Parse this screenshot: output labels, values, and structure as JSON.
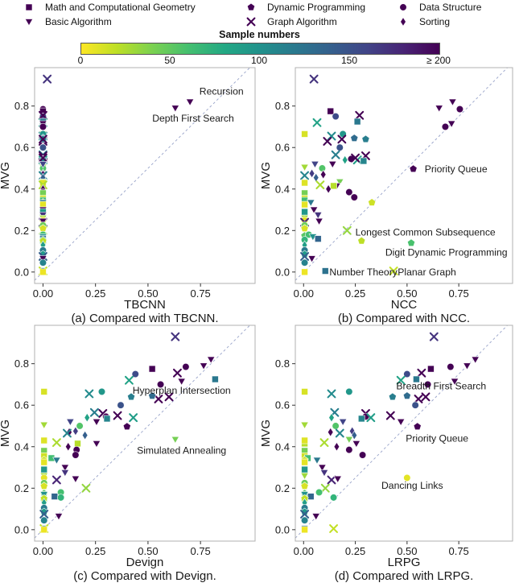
{
  "figure": {
    "legend": {
      "items": [
        {
          "label": "Math and Computational Geometry",
          "shape": "square"
        },
        {
          "label": "Basic Algorithm",
          "shape": "triangle-down"
        },
        {
          "label": "Dynamic Programming",
          "shape": "pentagon"
        },
        {
          "label": "Graph Algorithm",
          "shape": "x"
        },
        {
          "label": "Data Structure",
          "shape": "circle"
        },
        {
          "label": "Sorting",
          "shape": "diamond"
        }
      ],
      "marker_color": "#440154"
    },
    "colorbar": {
      "title": "Sample numbers",
      "tick_labels": [
        "0",
        "50",
        "100",
        "150",
        "≥ 200"
      ],
      "gradient": [
        "#fde725",
        "#bddf26",
        "#7ad151",
        "#44bf70",
        "#22a884",
        "#21918c",
        "#2a788e",
        "#355f8d",
        "#414487",
        "#482475",
        "#440154"
      ]
    }
  },
  "chart_data": {
    "type": "scatter",
    "ylabel": "MVG",
    "x_ticks": {
      "values": [
        0,
        0.25,
        0.5,
        0.75
      ],
      "labels": [
        "0.00",
        "0.25",
        "0.50",
        "0.75"
      ]
    },
    "y_ticks": {
      "values": [
        0,
        0.2,
        0.4,
        0.6,
        0.8
      ],
      "labels": [
        "0.0",
        "0.2",
        "0.4",
        "0.6",
        "0.8"
      ]
    },
    "xlim": [
      -0.04,
      1.01
    ],
    "ylim": [
      -0.055,
      0.985
    ],
    "identity_line": true,
    "grid": false,
    "color_encoding": {
      "label": "Sample numbers",
      "range": [
        0,
        200
      ],
      "colormap": "viridis reversed"
    },
    "shape_encoding": {
      "square": "Math and Computational Geometry",
      "triangle-down": "Basic Algorithm",
      "pentagon": "Dynamic Programming",
      "x": "Graph Algorithm",
      "circle": "Data Structure",
      "diamond": "Sorting"
    },
    "panels": [
      {
        "id": "tbcnn",
        "xlabel": "TBCNN",
        "caption": "(a) Compared with TBCNN.",
        "annotations": [
          {
            "text": "Recursion",
            "x": 0.85,
            "y": 0.872,
            "anchor": "middle"
          },
          {
            "text": "Depth First Search",
            "x": 0.715,
            "y": 0.742,
            "anchor": "middle"
          }
        ]
      },
      {
        "id": "ncc",
        "xlabel": "NCC",
        "caption": "(b) Compared with NCC.",
        "annotations": [
          {
            "text": "Priority Queue",
            "x": 0.585,
            "y": 0.497,
            "anchor": "start"
          },
          {
            "text": "Longest Common Subsequence",
            "x": 0.25,
            "y": 0.193,
            "anchor": "start"
          },
          {
            "text": "Digit Dynamic Programming",
            "x": 0.985,
            "y": 0.095,
            "anchor": "end"
          },
          {
            "text": "Number Theory",
            "x": 0.125,
            "y": 0.0,
            "anchor": "start"
          },
          {
            "text": "Planar Graph",
            "x": 0.455,
            "y": 0.0,
            "anchor": "start"
          }
        ]
      },
      {
        "id": "devign",
        "xlabel": "Devign",
        "caption": "(c) Compared with Devign.",
        "annotations": [
          {
            "text": "Hyperplan Intersection",
            "x": 0.66,
            "y": 0.672,
            "anchor": "middle"
          },
          {
            "text": "Simulated Annealing",
            "x": 0.66,
            "y": 0.383,
            "anchor": "middle"
          }
        ]
      },
      {
        "id": "lrpg",
        "xlabel": "LRPG",
        "caption": "(d) Compared with LRPG.",
        "annotations": [
          {
            "text": "Breadth First Search",
            "x": 0.665,
            "y": 0.692,
            "anchor": "middle"
          },
          {
            "text": "Priority Queue",
            "x": 0.645,
            "y": 0.44,
            "anchor": "middle"
          },
          {
            "text": "Dancing Links",
            "x": 0.525,
            "y": 0.213,
            "anchor": "middle"
          }
        ]
      }
    ],
    "points": [
      {
        "cat": "x",
        "n": 170,
        "mvg": 0.93,
        "x": [
          0.02,
          0.05,
          0.63,
          0.63
        ]
      },
      {
        "cat": "triangle-down",
        "n": 210,
        "mvg": 0.82,
        "x": [
          0.7,
          0.72,
          0.8,
          0.83
        ]
      },
      {
        "cat": "triangle-down",
        "n": 210,
        "mvg": 0.79,
        "x": [
          0.63,
          0.655,
          0.765,
          0.79
        ]
      },
      {
        "cat": "circle",
        "n": 210,
        "mvg": 0.785,
        "x": [
          0,
          0.755,
          0.68,
          0.71
        ]
      },
      {
        "cat": "square",
        "n": 210,
        "mvg": 0.775,
        "x": [
          0,
          0.13,
          0.52,
          0.615
        ]
      },
      {
        "cat": "circle",
        "n": 155,
        "mvg": 0.75,
        "x": [
          0,
          0.155,
          0.44,
          0.5
        ]
      },
      {
        "cat": "x",
        "n": 210,
        "mvg": 0.755,
        "x": [
          0,
          0.27,
          0.64,
          0.57
        ]
      },
      {
        "cat": "x",
        "n": 85,
        "mvg": 0.72,
        "x": [
          0,
          0.065,
          0.41,
          0.47
        ]
      },
      {
        "cat": "square",
        "n": 120,
        "mvg": 0.725,
        "x": [
          0,
          0.26,
          0.82,
          0.545
        ]
      },
      {
        "cat": "triangle-down",
        "n": 205,
        "mvg": 0.715,
        "x": [
          0,
          0.715,
          0.66,
          0.73
        ]
      },
      {
        "cat": "circle",
        "n": 210,
        "mvg": 0.7,
        "x": [
          0,
          0.685,
          0.56,
          0.6
        ]
      },
      {
        "cat": "square",
        "n": 12,
        "mvg": 0.665,
        "x": [
          0,
          0.005,
          0.005,
          0.005
        ]
      },
      {
        "cat": "x",
        "n": 105,
        "mvg": 0.655,
        "x": [
          0,
          0.135,
          0.22,
          0.135
        ]
      },
      {
        "cat": "x",
        "n": 205,
        "mvg": 0.63,
        "x": [
          0,
          0.115,
          0.55,
          0.555
        ]
      },
      {
        "cat": "circle",
        "n": 95,
        "mvg": 0.665,
        "x": [
          0,
          0.19,
          0.28,
          0.22
        ]
      },
      {
        "cat": "pentagon",
        "n": 130,
        "mvg": 0.645,
        "x": [
          0,
          0.245,
          0.52,
          0.5
        ]
      },
      {
        "cat": "pentagon",
        "n": 115,
        "mvg": 0.64,
        "x": [
          0,
          0.3,
          0.42,
          0.43
        ]
      },
      {
        "cat": "x",
        "n": 205,
        "mvg": 0.64,
        "x": [
          0,
          0.185,
          0.6,
          0.59
        ]
      },
      {
        "cat": "circle",
        "n": 150,
        "mvg": 0.6,
        "x": [
          0,
          0.175,
          0.37,
          0.54
        ]
      },
      {
        "cat": "x",
        "n": 115,
        "mvg": 0.565,
        "x": [
          0,
          0.155,
          0.245,
          0.15
        ]
      },
      {
        "cat": "x",
        "n": 205,
        "mvg": 0.56,
        "x": [
          0,
          0.3,
          0.285,
          0.3
        ]
      },
      {
        "cat": "circle",
        "n": 205,
        "mvg": 0.545,
        "x": [
          0,
          0.23,
          0.3,
          0.3
        ]
      },
      {
        "cat": "diamond",
        "n": 85,
        "mvg": 0.54,
        "x": [
          0,
          0.2,
          0.21,
          0.135
        ]
      },
      {
        "cat": "x",
        "n": 90,
        "mvg": 0.54,
        "x": [
          0,
          0.26,
          0.43,
          0.325
        ]
      },
      {
        "cat": "square",
        "n": 110,
        "mvg": 0.535,
        "x": [
          0,
          0.29,
          0.305,
          0.28
        ]
      },
      {
        "cat": "x",
        "n": 205,
        "mvg": 0.55,
        "x": [
          0,
          0.25,
          0.355,
          0.42
        ]
      },
      {
        "cat": "triangle-down",
        "n": 205,
        "mvg": 0.52,
        "x": [
          0,
          0.14,
          0.255,
          0.47
        ]
      },
      {
        "cat": "pentagon",
        "n": 205,
        "mvg": 0.497,
        "x": [
          0,
          0.53,
          0.4,
          0.55
        ]
      },
      {
        "cat": "triangle-down",
        "n": 28,
        "mvg": 0.505,
        "x": [
          0,
          0.005,
          0.005,
          0.005
        ]
      },
      {
        "cat": "circle",
        "n": 55,
        "mvg": 0.5,
        "x": [
          0,
          0.09,
          0.175,
          0.155
        ]
      },
      {
        "cat": "diamond",
        "n": 165,
        "mvg": 0.475,
        "x": [
          0,
          0.04,
          0.155,
          0.235
        ]
      },
      {
        "cat": "diamond",
        "n": 205,
        "mvg": 0.47,
        "x": [
          0,
          0.095,
          0.125,
          0.13
        ]
      },
      {
        "cat": "x",
        "n": 110,
        "mvg": 0.465,
        "x": [
          0,
          0.005,
          0.115,
          0.175
        ]
      },
      {
        "cat": "diamond",
        "n": 140,
        "mvg": 0.455,
        "x": [
          0,
          0.06,
          0.2,
          0.245
        ]
      },
      {
        "cat": "triangle-down",
        "n": 160,
        "mvg": 0.52,
        "x": [
          0,
          0.055,
          0.13,
          0.19
        ]
      },
      {
        "cat": "triangle-down",
        "n": 42,
        "mvg": 0.435,
        "x": [
          0,
          0.175,
          0.63,
          0.22
        ]
      },
      {
        "cat": "triangle-down",
        "n": 205,
        "mvg": 0.415,
        "x": [
          0,
          0.16,
          0.255,
          0.255
        ]
      },
      {
        "cat": "square",
        "n": 22,
        "mvg": 0.415,
        "x": [
          0,
          0.145,
          0.165,
          0.005
        ]
      },
      {
        "cat": "square",
        "n": 10,
        "mvg": 0.43,
        "x": [
          0,
          0.005,
          0.005,
          0.005
        ]
      },
      {
        "cat": "x",
        "n": 25,
        "mvg": 0.42,
        "x": [
          0,
          0.08,
          0.065,
          0.1
        ]
      },
      {
        "cat": "diamond",
        "n": 205,
        "mvg": 0.4,
        "x": [
          0,
          0.12,
          0.12,
          0.16
        ]
      },
      {
        "cat": "circle",
        "n": 205,
        "mvg": 0.385,
        "x": [
          0,
          0.22,
          0.16,
          0.22
        ]
      },
      {
        "cat": "circle",
        "n": 205,
        "mvg": 0.36,
        "x": [
          0,
          0.245,
          0.155,
          0.285
        ]
      },
      {
        "cat": "square",
        "n": 42,
        "mvg": 0.38,
        "x": [
          0,
          0.005,
          0.005,
          0.005
        ]
      },
      {
        "cat": "square",
        "n": 15,
        "mvg": 0.355,
        "x": [
          0,
          0.005,
          0.005,
          0.005
        ]
      },
      {
        "cat": "square",
        "n": 62,
        "mvg": 0.345,
        "x": [
          0,
          0.005,
          0.04,
          0.02
        ]
      },
      {
        "cat": "pentagon",
        "n": 15,
        "mvg": 0.335,
        "x": [
          0,
          0.33,
          0.005,
          0.005
        ]
      },
      {
        "cat": "triangle-down",
        "n": 120,
        "mvg": 0.335,
        "x": [
          0,
          0.035,
          0.065,
          0.065
        ]
      },
      {
        "cat": "square",
        "n": 8,
        "mvg": 0.325,
        "x": [
          0,
          0.005,
          0.005,
          0.005
        ]
      },
      {
        "cat": "triangle-down",
        "n": 205,
        "mvg": 0.3,
        "x": [
          0,
          0.05,
          0.105,
          0.09
        ]
      },
      {
        "cat": "square",
        "n": 95,
        "mvg": 0.29,
        "x": [
          0,
          0.005,
          0.005,
          0.005
        ]
      },
      {
        "cat": "triangle-down",
        "n": 170,
        "mvg": 0.275,
        "x": [
          0,
          0.07,
          0.105,
          0.1
        ]
      },
      {
        "cat": "triangle-down",
        "n": 30,
        "mvg": 0.26,
        "x": [
          0,
          0.005,
          0.005,
          0.005
        ]
      },
      {
        "cat": "circle",
        "n": 8,
        "mvg": 0.25,
        "x": [
          0,
          0.005,
          0.005,
          0.5
        ]
      },
      {
        "cat": "x",
        "n": 180,
        "mvg": 0.24,
        "x": [
          0,
          0.005,
          0.065,
          0.135
        ]
      },
      {
        "cat": "triangle-down",
        "n": 205,
        "mvg": 0.245,
        "x": [
          0,
          0.075,
          0.155,
          0.165
        ]
      },
      {
        "cat": "circle",
        "n": 45,
        "mvg": 0.225,
        "x": [
          0,
          0.005,
          0.005,
          0.005
        ]
      },
      {
        "cat": "x",
        "n": 32,
        "mvg": 0.2,
        "x": [
          0,
          0.21,
          0.205,
          0.105
        ]
      },
      {
        "cat": "pentagon",
        "n": 12,
        "mvg": 0.21,
        "x": [
          0,
          0.005,
          0.005,
          0.005
        ]
      },
      {
        "cat": "pentagon",
        "n": 52,
        "mvg": 0.175,
        "x": [
          0,
          0.005,
          0.005,
          0.005
        ]
      },
      {
        "cat": "circle",
        "n": 60,
        "mvg": 0.18,
        "x": [
          0,
          0.025,
          0.085,
          0.075
        ]
      },
      {
        "cat": "triangle-down",
        "n": 100,
        "mvg": 0.17,
        "x": [
          0,
          0.045,
          0.005,
          0.005
        ]
      },
      {
        "cat": "square",
        "n": 135,
        "mvg": 0.16,
        "x": [
          0,
          0.07,
          0.055,
          0.035
        ]
      },
      {
        "cat": "circle",
        "n": 70,
        "mvg": 0.155,
        "x": [
          0,
          0.005,
          0.085,
          0.145
        ]
      },
      {
        "cat": "pentagon",
        "n": 58,
        "mvg": 0.14,
        "x": [
          0,
          0.52,
          0.005,
          0.005
        ]
      },
      {
        "cat": "pentagon",
        "n": 20,
        "mvg": 0.15,
        "x": [
          0,
          0.28,
          0.005,
          0.005
        ]
      },
      {
        "cat": "diamond",
        "n": 88,
        "mvg": 0.13,
        "x": [
          0,
          0.005,
          0.005,
          0.005
        ]
      },
      {
        "cat": "circle",
        "n": 118,
        "mvg": 0.105,
        "x": [
          0,
          0.005,
          0.005,
          0.005
        ]
      },
      {
        "cat": "pentagon",
        "n": 92,
        "mvg": 0.085,
        "x": [
          0,
          0.005,
          0.005,
          0.005
        ]
      },
      {
        "cat": "x",
        "n": 140,
        "mvg": 0.075,
        "x": [
          0,
          0.005,
          0.005,
          0.005
        ]
      },
      {
        "cat": "triangle-down",
        "n": 205,
        "mvg": 0.065,
        "x": [
          0,
          0.04,
          0.075,
          0.06
        ]
      },
      {
        "cat": "circle",
        "n": 112,
        "mvg": 0.045,
        "x": [
          0,
          0.005,
          0.005,
          0.005
        ]
      },
      {
        "cat": "square",
        "n": 125,
        "mvg": 0.005,
        "x": [
          0,
          0.105,
          0.005,
          0.005
        ]
      },
      {
        "cat": "x",
        "n": 18,
        "mvg": 0.005,
        "x": [
          0,
          0.435,
          0.005,
          0.145
        ]
      },
      {
        "cat": "triangle-down",
        "n": 72,
        "mvg": 0.0,
        "x": [
          0,
          0.005,
          0.005,
          0.005
        ]
      },
      {
        "cat": "square",
        "n": 5,
        "mvg": 0.0,
        "x": [
          0,
          0.005,
          0.005,
          0.005
        ]
      }
    ]
  }
}
